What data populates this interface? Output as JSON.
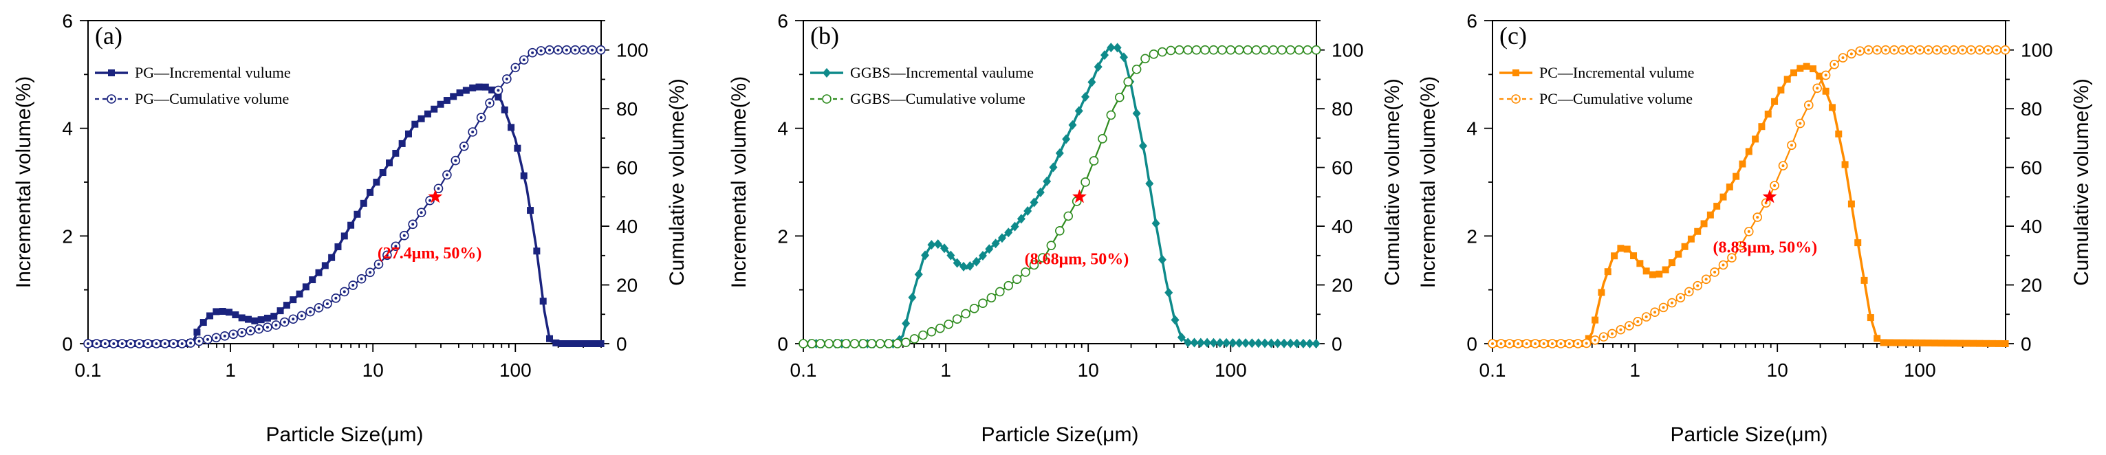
{
  "chart_data": [
    {
      "type": "line",
      "panel_label": "(a)",
      "xlabel": "Particle Size(μm)",
      "ylabel": "Incremental volume(%)",
      "y2label": "Cumulative volume(%)",
      "xscale": "log",
      "xlim": [
        0.1,
        400
      ],
      "ylim": [
        0,
        6
      ],
      "y2lim": [
        0,
        110
      ],
      "x_ticks": [
        0.1,
        1,
        10,
        100
      ],
      "x_tick_labels": [
        "0.1",
        "1",
        "10",
        "100"
      ],
      "y_ticks": [
        0,
        2,
        4,
        6
      ],
      "y_tick_labels": [
        "0",
        "2",
        "4",
        "6"
      ],
      "y2_ticks": [
        0,
        20,
        40,
        60,
        80,
        100
      ],
      "y2_tick_labels": [
        "0",
        "20",
        "40",
        "60",
        "80",
        "100"
      ],
      "legend_placement": "top-left",
      "colors": {
        "incremental": "#1a237e",
        "cumulative": "#1a237e"
      },
      "markers": {
        "incremental": "square",
        "cumulative": "dotted-circle"
      },
      "series": [
        {
          "name": "PG—Incremental vulume",
          "axis": "left",
          "x": [
            0.1,
            0.2,
            0.3,
            0.4,
            0.5,
            0.55,
            0.6,
            0.7,
            0.8,
            0.9,
            1.0,
            1.2,
            1.5,
            2,
            3,
            5,
            7,
            10,
            15,
            20,
            30,
            40,
            50,
            60,
            70,
            80,
            100,
            120,
            140,
            160,
            175,
            200,
            400
          ],
          "y": [
            0,
            0,
            0,
            0,
            0,
            0.05,
            0.3,
            0.5,
            0.6,
            0.6,
            0.58,
            0.48,
            0.42,
            0.5,
            0.9,
            1.55,
            2.2,
            2.9,
            3.6,
            4.1,
            4.45,
            4.65,
            4.75,
            4.78,
            4.7,
            4.5,
            3.8,
            2.9,
            1.8,
            0.6,
            0.05,
            0,
            0
          ]
        },
        {
          "name": "PG—Cumulative volume",
          "axis": "right",
          "x": [
            0.1,
            0.5,
            0.7,
            1,
            2,
            3,
            5,
            10,
            15,
            20,
            30,
            50,
            70,
            100,
            130,
            160,
            200,
            400
          ],
          "y": [
            0,
            0,
            1.5,
            3,
            6,
            9,
            14,
            25,
            34,
            42,
            54,
            72,
            84,
            94,
            99,
            100,
            100,
            100
          ]
        }
      ],
      "annotations": [
        {
          "text": "(27.4μm, 50%)",
          "x": 27.4,
          "y_right": 50,
          "marker": "red-star",
          "label_x": 25,
          "label_y_right": 29
        }
      ]
    },
    {
      "type": "line",
      "panel_label": "(b)",
      "xlabel": "Particle Size(μm)",
      "ylabel": "Incremental volume(%)",
      "y2label": "Cumulative volume(%)",
      "xscale": "log",
      "xlim": [
        0.1,
        400
      ],
      "ylim": [
        0,
        6
      ],
      "y2lim": [
        0,
        110
      ],
      "x_ticks": [
        0.1,
        1,
        10,
        100
      ],
      "x_tick_labels": [
        "0.1",
        "1",
        "10",
        "100"
      ],
      "y_ticks": [
        0,
        2,
        4,
        6
      ],
      "y_tick_labels": [
        "0",
        "2",
        "4",
        "6"
      ],
      "y2_ticks": [
        0,
        20,
        40,
        60,
        80,
        100
      ],
      "y2_tick_labels": [
        "0",
        "20",
        "40",
        "60",
        "80",
        "100"
      ],
      "legend_placement": "top-left",
      "colors": {
        "incremental": "#0e8a8a",
        "cumulative": "#2e8b1e"
      },
      "markers": {
        "incremental": "diamond",
        "cumulative": "open-circle"
      },
      "series": [
        {
          "name": "GGBS—Incremental vaulume",
          "axis": "left",
          "x": [
            0.1,
            0.2,
            0.3,
            0.4,
            0.45,
            0.5,
            0.6,
            0.7,
            0.8,
            0.9,
            1.0,
            1.2,
            1.4,
            1.7,
            2,
            3,
            4,
            5,
            7,
            10,
            12,
            14,
            16,
            18,
            20,
            25,
            30,
            35,
            40,
            45,
            50,
            400
          ],
          "y": [
            0,
            0,
            0,
            0,
            0,
            0.15,
            1.0,
            1.6,
            1.85,
            1.85,
            1.75,
            1.5,
            1.4,
            1.55,
            1.75,
            2.15,
            2.55,
            2.95,
            3.8,
            4.7,
            5.2,
            5.5,
            5.5,
            5.3,
            4.8,
            3.5,
            2.2,
            1.2,
            0.5,
            0.12,
            0.02,
            0
          ]
        },
        {
          "name": "GGBS—Cumulative volume",
          "axis": "right",
          "x": [
            0.1,
            0.5,
            0.7,
            1,
            2,
            3,
            5,
            8.68,
            12,
            15,
            20,
            25,
            30,
            40,
            50,
            400
          ],
          "y": [
            0,
            0,
            3,
            6,
            15,
            21,
            30,
            50,
            67,
            80,
            91,
            97,
            99,
            100,
            100,
            100
          ]
        }
      ],
      "annotations": [
        {
          "text": "(8.68μm, 50%)",
          "x": 8.68,
          "y_right": 50,
          "marker": "red-star",
          "label_x": 8.3,
          "label_y_right": 27
        }
      ]
    },
    {
      "type": "line",
      "panel_label": "(c)",
      "xlabel": "Particle Size(μm)",
      "ylabel": "Incremental volume(%)",
      "y2label": "Cumulative volume(%)",
      "xscale": "log",
      "xlim": [
        0.1,
        400
      ],
      "ylim": [
        0,
        6
      ],
      "y2lim": [
        0,
        110
      ],
      "x_ticks": [
        0.1,
        1,
        10,
        100
      ],
      "x_tick_labels": [
        "0.1",
        "1",
        "10",
        "100"
      ],
      "y_ticks": [
        0,
        2,
        4,
        6
      ],
      "y_tick_labels": [
        "0",
        "2",
        "4",
        "6"
      ],
      "y2_ticks": [
        0,
        20,
        40,
        60,
        80,
        100
      ],
      "y2_tick_labels": [
        "0",
        "20",
        "40",
        "60",
        "80",
        "100"
      ],
      "legend_placement": "top-left",
      "colors": {
        "incremental": "#ff8c00",
        "cumulative": "#ff8c00"
      },
      "markers": {
        "incremental": "square",
        "cumulative": "dotted-circle"
      },
      "series": [
        {
          "name": "PC—Incremental vulume",
          "axis": "left",
          "x": [
            0.1,
            0.2,
            0.3,
            0.4,
            0.45,
            0.5,
            0.6,
            0.7,
            0.8,
            0.9,
            1.0,
            1.2,
            1.4,
            1.7,
            2,
            3,
            4,
            5,
            7,
            10,
            12,
            14,
            16,
            18,
            20,
            25,
            30,
            35,
            40,
            45,
            50,
            55,
            400
          ],
          "y": [
            0,
            0,
            0,
            0,
            0,
            0.2,
            1.1,
            1.6,
            1.78,
            1.75,
            1.6,
            1.35,
            1.25,
            1.4,
            1.65,
            2.2,
            2.65,
            3.05,
            3.8,
            4.6,
            4.95,
            5.1,
            5.15,
            5.1,
            4.95,
            4.3,
            3.3,
            2.2,
            1.3,
            0.5,
            0.1,
            0.02,
            0
          ]
        },
        {
          "name": "PC—Cumulative volume",
          "axis": "right",
          "x": [
            0.1,
            0.45,
            0.7,
            1,
            2,
            3,
            5,
            8.83,
            12,
            15,
            20,
            25,
            30,
            40,
            50,
            60,
            400
          ],
          "y": [
            0,
            0,
            3.5,
            7,
            15,
            21,
            30,
            50,
            65,
            77,
            89,
            95,
            98,
            100,
            100,
            100,
            100
          ]
        }
      ],
      "annotations": [
        {
          "text": "(8.83μm, 50%)",
          "x": 8.83,
          "y_right": 50,
          "marker": "red-star",
          "label_x": 8.2,
          "label_y_right": 31
        }
      ]
    }
  ]
}
